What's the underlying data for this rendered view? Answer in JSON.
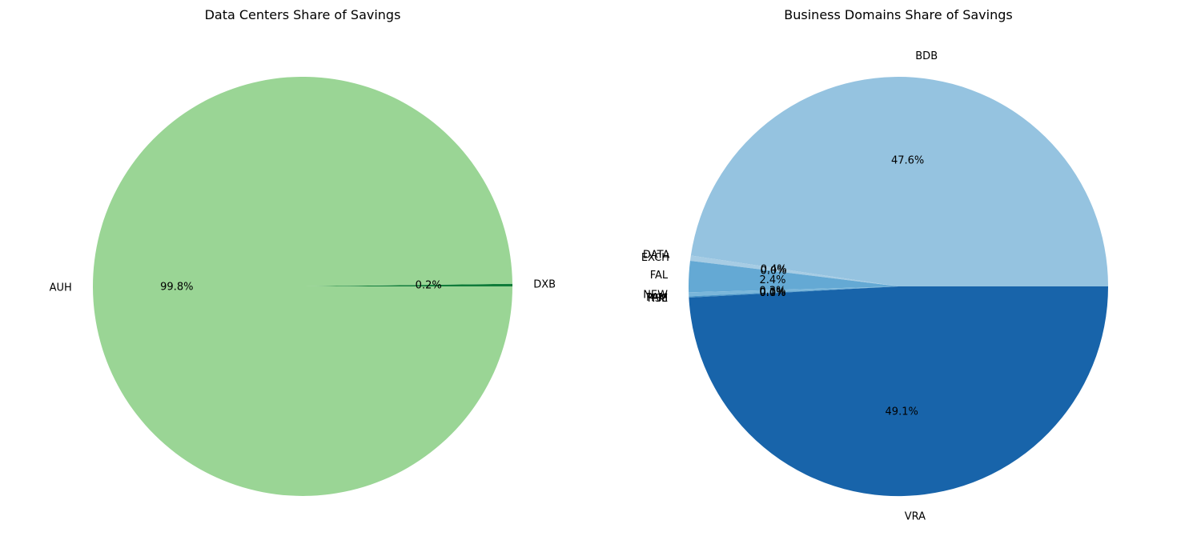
{
  "chart_data": [
    {
      "type": "pie",
      "title": "Data Centers Share of Savings",
      "labels": [
        "DXB",
        "AUH"
      ],
      "values": [
        0.2,
        99.8
      ],
      "value_labels": [
        "0.2%",
        "99.8%"
      ],
      "colors": [
        "#107c3a",
        "#9ad595"
      ],
      "start_angle_deg": 0,
      "direction": "counterclockwise"
    },
    {
      "type": "pie",
      "title": "Business Domains Share of Savings",
      "labels": [
        "BDB",
        "DATA",
        "EXCH",
        "FAL",
        "NEW",
        "PAM",
        "PKI",
        "RSE",
        "VRA"
      ],
      "values": [
        47.6,
        0.4,
        0.0,
        2.4,
        0.3,
        0.1,
        0.0,
        0.0,
        49.1
      ],
      "value_labels": [
        "47.6%",
        "0.4%",
        "0.0%",
        "2.4%",
        "0.3%",
        "0.1%",
        "0.0%",
        "0.0%",
        "49.1%"
      ],
      "colors": [
        "#95c3e0",
        "#a6cce4",
        "#8cbedd",
        "#64a9d4",
        "#7ab6da",
        "#4b97c9",
        "#3a8bc2",
        "#2a7bb9",
        "#1864aa"
      ],
      "start_angle_deg": 0,
      "direction": "counterclockwise"
    }
  ]
}
